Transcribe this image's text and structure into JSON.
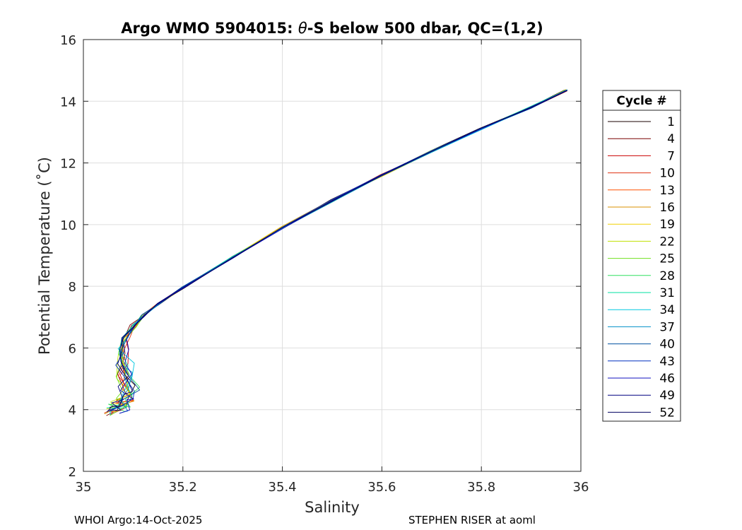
{
  "chart_data": {
    "type": "line",
    "title_parts": {
      "prefix": "Argo WMO 5904015: ",
      "theta": "θ",
      "suffix": "-S below 500 dbar,  QC=(1,2)"
    },
    "xlabel": "Salinity",
    "ylabel": "Potential Temperature (˚C)",
    "xlim": [
      35,
      36
    ],
    "ylim": [
      2,
      16
    ],
    "xticks": [
      "35",
      "35.2",
      "35.4",
      "35.6",
      "35.8",
      "36"
    ],
    "yticks": [
      "2",
      "4",
      "6",
      "8",
      "10",
      "12",
      "14",
      "16"
    ],
    "grid": true,
    "legend": {
      "title": "Cycle #",
      "placement": "right-outside",
      "entries": [
        "1",
        "4",
        "7",
        "10",
        "13",
        "16",
        "19",
        "22",
        "25",
        "28",
        "31",
        "34",
        "37",
        "40",
        "43",
        "46",
        "49",
        "52"
      ],
      "colors": [
        "#1a0000",
        "#7a0000",
        "#cc0000",
        "#e03010",
        "#ff5000",
        "#d99000",
        "#f0d000",
        "#c0e000",
        "#70e020",
        "#30e060",
        "#00e0a0",
        "#00c8e0",
        "#0090c8",
        "#0050a0",
        "#0030c0",
        "#1010c0",
        "#000080",
        "#000060"
      ]
    },
    "mean_profile": {
      "salinity": [
        35.97,
        35.9,
        35.8,
        35.7,
        35.6,
        35.5,
        35.4,
        35.3,
        35.2,
        35.15,
        35.12,
        35.1,
        35.085,
        35.08,
        35.078,
        35.082,
        35.085,
        35.08,
        35.075,
        35.07,
        35.065
      ],
      "theta": [
        14.35,
        13.8,
        13.12,
        12.38,
        11.6,
        10.78,
        9.9,
        8.95,
        7.95,
        7.42,
        7.05,
        6.7,
        6.3,
        5.9,
        5.5,
        5.1,
        4.7,
        4.4,
        4.2,
        4.05,
        3.95
      ]
    }
  },
  "footer": {
    "left": "WHOI Argo:14-Oct-2025",
    "right": "STEPHEN RISER at aoml"
  }
}
